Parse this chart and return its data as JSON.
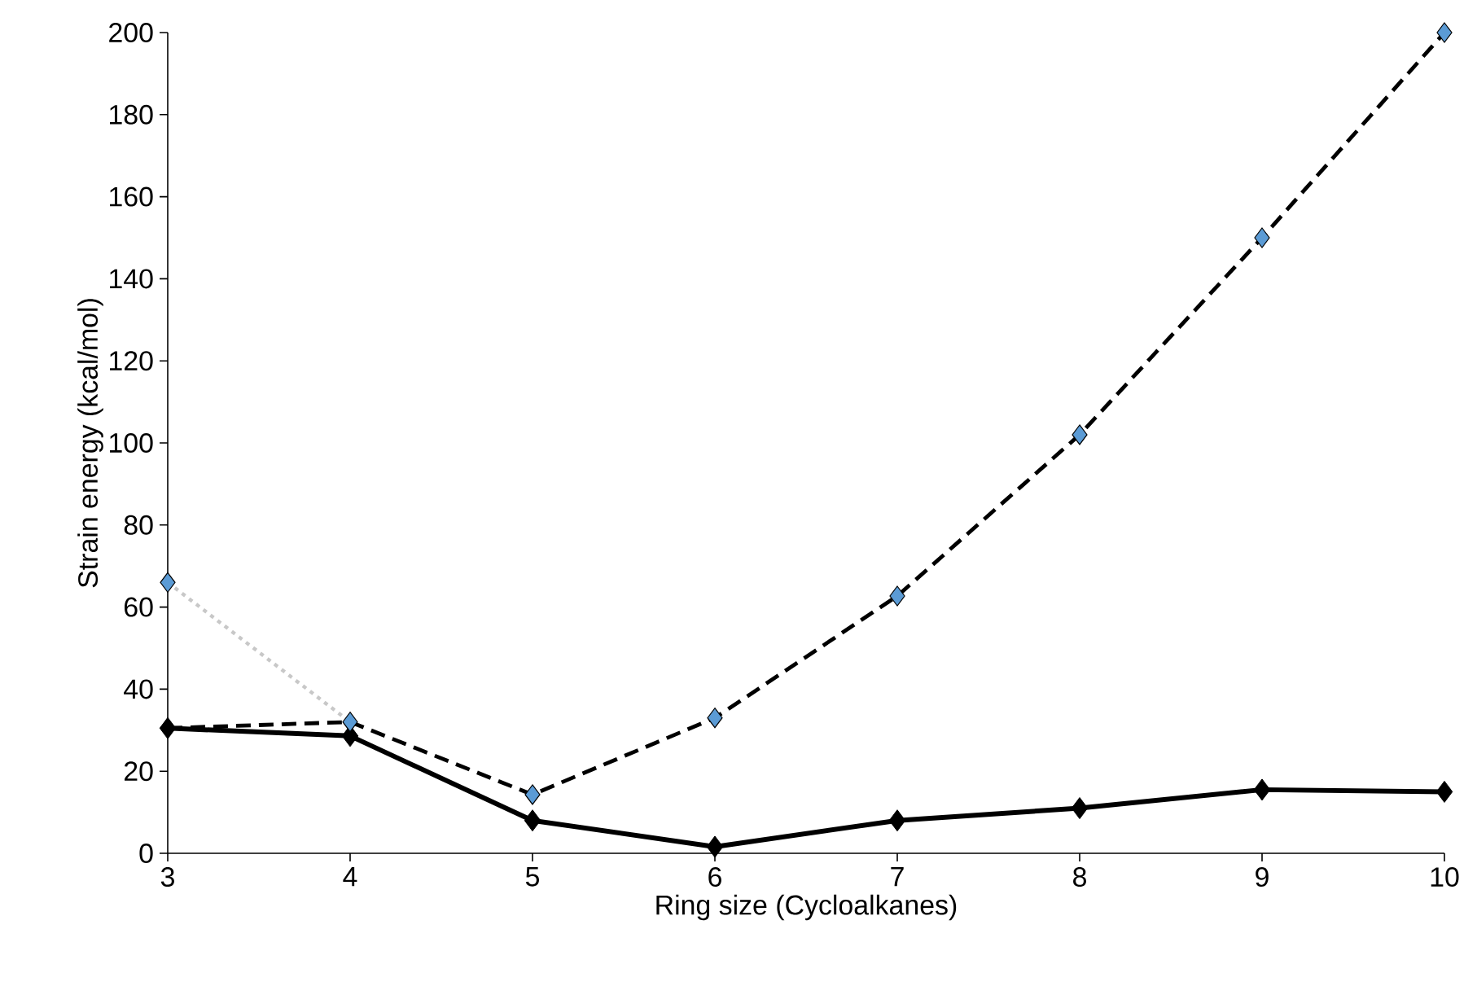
{
  "chart_data": {
    "type": "line",
    "xlabel": "Ring size (Cycloalkanes)",
    "ylabel": "Strain energy (kcal/mol)",
    "xlim": [
      3,
      10
    ],
    "xticks": [
      3,
      4,
      5,
      6,
      7,
      8,
      9,
      10
    ],
    "ylim": [
      0,
      200
    ],
    "yticks": [
      0,
      20,
      40,
      60,
      80,
      100,
      120,
      140,
      160,
      180,
      200
    ],
    "series": [
      {
        "color": "#c8c8c8",
        "line_style": "dotted",
        "marker": "none",
        "x": [
          3,
          4
        ],
        "values": [
          66,
          32
        ]
      },
      {
        "color": "#000000",
        "line_style": "dashed",
        "marker": "none",
        "x": [
          3,
          4,
          5,
          6,
          7,
          8,
          9,
          10
        ],
        "values": [
          30.5,
          32,
          14.3,
          33,
          62.7,
          102,
          150,
          200
        ]
      },
      {
        "color": "#000000",
        "line_style": "solid",
        "marker": "diamond",
        "x": [
          3,
          4,
          5,
          6,
          7,
          8,
          9,
          10
        ],
        "values": [
          30.5,
          28.6,
          8,
          1.6,
          8,
          11,
          15.5,
          15
        ]
      },
      {
        "type": "scatter",
        "color": "#5b9bd5",
        "marker": "diamond",
        "x": [
          3,
          4,
          5,
          6,
          7,
          8,
          9,
          10
        ],
        "values": [
          66,
          32,
          14.3,
          33,
          62.7,
          102,
          150,
          200
        ]
      }
    ]
  }
}
